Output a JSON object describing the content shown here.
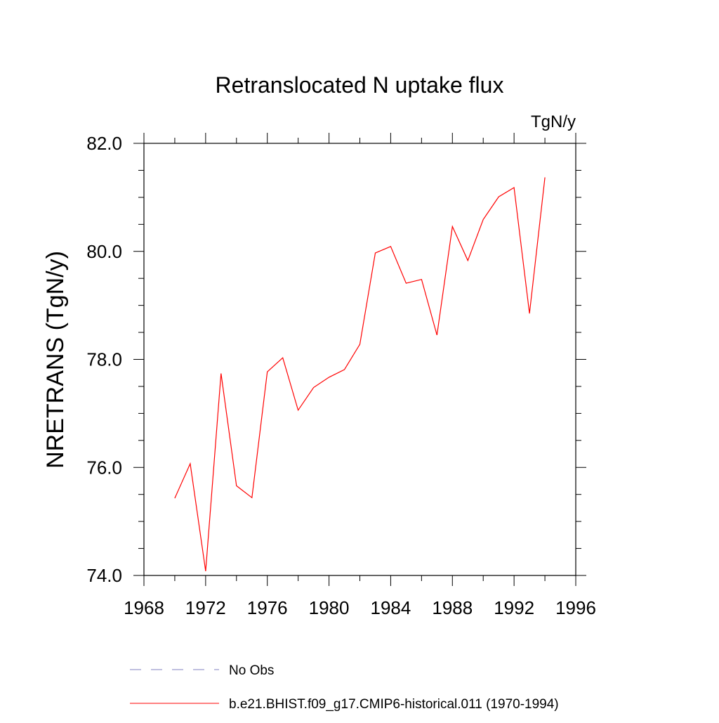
{
  "chart_data": {
    "type": "line",
    "title": "Retranslocated N uptake flux",
    "units": "TgN/y",
    "ylabel": "NRETRANS  (TgN/y)",
    "xlabel": "",
    "xlim": [
      1968,
      1996
    ],
    "ylim": [
      74.0,
      82.0
    ],
    "x_ticks": [
      1968,
      1972,
      1976,
      1980,
      1984,
      1988,
      1992,
      1996
    ],
    "y_ticks": [
      74.0,
      76.0,
      78.0,
      80.0,
      82.0
    ],
    "x_tick_labels": [
      "1968",
      "1972",
      "1976",
      "1980",
      "1984",
      "1988",
      "1992",
      "1996"
    ],
    "y_tick_labels": [
      "74.0",
      "76.0",
      "78.0",
      "80.0",
      "82.0"
    ],
    "x_minor_step": 2,
    "y_minor_step": 0.5,
    "grid": false,
    "legend_position": "bottom",
    "series": [
      {
        "name": "b.e21.BHIST.f09_g17.CMIP6-historical.011 (1970-1994)",
        "color": "#ff0000",
        "style": "solid",
        "x": [
          1970,
          1971,
          1972,
          1973,
          1974,
          1975,
          1976,
          1977,
          1978,
          1979,
          1980,
          1981,
          1982,
          1983,
          1984,
          1985,
          1986,
          1987,
          1988,
          1989,
          1990,
          1991,
          1992,
          1993,
          1994
        ],
        "y": [
          75.43,
          76.07,
          74.08,
          77.74,
          75.66,
          75.44,
          77.77,
          78.03,
          77.06,
          77.48,
          77.67,
          77.81,
          78.28,
          79.97,
          80.09,
          79.41,
          79.48,
          78.45,
          80.46,
          79.83,
          80.59,
          81.01,
          81.18,
          78.85,
          81.37
        ]
      }
    ],
    "legend": [
      {
        "label": "No Obs",
        "color": "#8080c0",
        "style": "dashed"
      },
      {
        "label": "b.e21.BHIST.f09_g17.CMIP6-historical.011 (1970-1994)",
        "color": "#ff0000",
        "style": "solid"
      }
    ]
  }
}
